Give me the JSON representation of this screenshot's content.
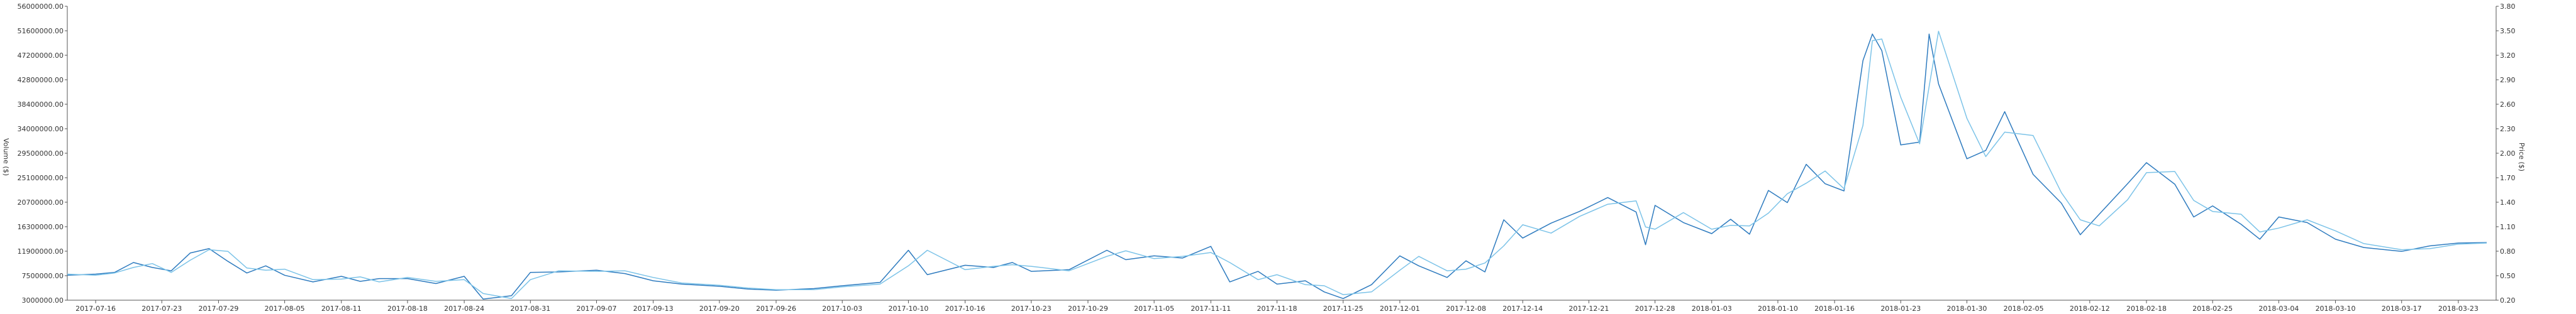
{
  "chart_data": {
    "type": "line",
    "title": "",
    "ylabel_left": "Volume ($)",
    "ylabel_right": "Price ($)",
    "ylim_left": [
      3000000,
      56000000
    ],
    "ylim_right": [
      0.2,
      3.8
    ],
    "y_ticks_left": [
      "3000000.00",
      "7500000.00",
      "11900000.00",
      "16300000.00",
      "20700000.00",
      "25100000.00",
      "29500000.00",
      "34000000.00",
      "38400000.00",
      "42800000.00",
      "47200000.00",
      "51600000.00",
      "56000000.00"
    ],
    "y_ticks_right": [
      "0.20",
      "0.50",
      "0.80",
      "1.10",
      "1.40",
      "1.70",
      "2.00",
      "2.30",
      "2.60",
      "2.90",
      "3.20",
      "3.50",
      "3.80"
    ],
    "x_ticks": [
      "2017-07-16",
      "2017-07-23",
      "2017-07-29",
      "2017-08-05",
      "2017-08-11",
      "2017-08-18",
      "2017-08-24",
      "2017-08-31",
      "2017-09-07",
      "2017-09-13",
      "2017-09-20",
      "2017-09-26",
      "2017-10-03",
      "2017-10-10",
      "2017-10-16",
      "2017-10-23",
      "2017-10-29",
      "2017-11-05",
      "2017-11-11",
      "2017-11-18",
      "2017-11-25",
      "2017-12-01",
      "2017-12-08",
      "2017-12-14",
      "2017-12-21",
      "2017-12-28",
      "2018-01-03",
      "2018-01-10",
      "2018-01-16",
      "2018-01-23",
      "2018-01-30",
      "2018-02-05",
      "2018-02-12",
      "2018-02-18",
      "2018-02-25",
      "2018-03-04",
      "2018-03-10",
      "2018-03-17",
      "2018-03-23"
    ],
    "grid": false,
    "series": [
      {
        "name": "",
        "color": "#2e7bbf",
        "points": [
          [
            "2017-07-13",
            7500000
          ],
          [
            "2017-07-16",
            7700000
          ],
          [
            "2017-07-18",
            8000000
          ],
          [
            "2017-07-20",
            9800000
          ],
          [
            "2017-07-22",
            8900000
          ],
          [
            "2017-07-24",
            8300000
          ],
          [
            "2017-07-26",
            11500000
          ],
          [
            "2017-07-28",
            12300000
          ],
          [
            "2017-07-30",
            10000000
          ],
          [
            "2017-08-01",
            7900000
          ],
          [
            "2017-08-03",
            9200000
          ],
          [
            "2017-08-05",
            7500000
          ],
          [
            "2017-08-08",
            6300000
          ],
          [
            "2017-08-11",
            7300000
          ],
          [
            "2017-08-13",
            6400000
          ],
          [
            "2017-08-15",
            6900000
          ],
          [
            "2017-08-18",
            6900000
          ],
          [
            "2017-08-21",
            6000000
          ],
          [
            "2017-08-24",
            7300000
          ],
          [
            "2017-08-26",
            3200000
          ],
          [
            "2017-08-29",
            3800000
          ],
          [
            "2017-08-31",
            8000000
          ],
          [
            "2017-09-03",
            8100000
          ],
          [
            "2017-09-07",
            8400000
          ],
          [
            "2017-09-10",
            7800000
          ],
          [
            "2017-09-13",
            6500000
          ],
          [
            "2017-09-16",
            5900000
          ],
          [
            "2017-09-20",
            5500000
          ],
          [
            "2017-09-23",
            5000000
          ],
          [
            "2017-09-26",
            4800000
          ],
          [
            "2017-09-30",
            5100000
          ],
          [
            "2017-10-03",
            5600000
          ],
          [
            "2017-10-07",
            6200000
          ],
          [
            "2017-10-10",
            12000000
          ],
          [
            "2017-10-12",
            7600000
          ],
          [
            "2017-10-16",
            9300000
          ],
          [
            "2017-10-19",
            8900000
          ],
          [
            "2017-10-21",
            9800000
          ],
          [
            "2017-10-23",
            8200000
          ],
          [
            "2017-10-27",
            8500000
          ],
          [
            "2017-10-31",
            12000000
          ],
          [
            "2017-11-02",
            10300000
          ],
          [
            "2017-11-05",
            11000000
          ],
          [
            "2017-11-08",
            10600000
          ],
          [
            "2017-11-11",
            12700000
          ],
          [
            "2017-11-13",
            6300000
          ],
          [
            "2017-11-16",
            8200000
          ],
          [
            "2017-11-18",
            5900000
          ],
          [
            "2017-11-21",
            6500000
          ],
          [
            "2017-11-23",
            4500000
          ],
          [
            "2017-11-25",
            3300000
          ],
          [
            "2017-11-28",
            5800000
          ],
          [
            "2017-12-01",
            11000000
          ],
          [
            "2017-12-03",
            9200000
          ],
          [
            "2017-12-06",
            7100000
          ],
          [
            "2017-12-08",
            10100000
          ],
          [
            "2017-12-10",
            8100000
          ],
          [
            "2017-12-12",
            17500000
          ],
          [
            "2017-12-14",
            14200000
          ],
          [
            "2017-12-17",
            16900000
          ],
          [
            "2017-12-20",
            19000000
          ],
          [
            "2017-12-23",
            21500000
          ],
          [
            "2017-12-26",
            18900000
          ],
          [
            "2017-12-27",
            13000000
          ],
          [
            "2017-12-28",
            20100000
          ],
          [
            "2017-12-31",
            17000000
          ],
          [
            "2018-01-03",
            15000000
          ],
          [
            "2018-01-05",
            17600000
          ],
          [
            "2018-01-07",
            14900000
          ],
          [
            "2018-01-09",
            22800000
          ],
          [
            "2018-01-11",
            20600000
          ],
          [
            "2018-01-13",
            27500000
          ],
          [
            "2018-01-15",
            24000000
          ],
          [
            "2018-01-17",
            22700000
          ],
          [
            "2018-01-19",
            46200000
          ],
          [
            "2018-01-20",
            51000000
          ],
          [
            "2018-01-21",
            48000000
          ],
          [
            "2018-01-23",
            31000000
          ],
          [
            "2018-01-25",
            31500000
          ],
          [
            "2018-01-26",
            51000000
          ],
          [
            "2018-01-27",
            42000000
          ],
          [
            "2018-01-30",
            28500000
          ],
          [
            "2018-02-01",
            30000000
          ],
          [
            "2018-02-03",
            37000000
          ],
          [
            "2018-02-06",
            25700000
          ],
          [
            "2018-02-09",
            20500000
          ],
          [
            "2018-02-11",
            14800000
          ],
          [
            "2018-02-13",
            18500000
          ],
          [
            "2018-02-16",
            24000000
          ],
          [
            "2018-02-18",
            27800000
          ],
          [
            "2018-02-21",
            23900000
          ],
          [
            "2018-02-23",
            18000000
          ],
          [
            "2018-02-25",
            20000000
          ],
          [
            "2018-02-28",
            16700000
          ],
          [
            "2018-03-02",
            14000000
          ],
          [
            "2018-03-04",
            18000000
          ],
          [
            "2018-03-07",
            17000000
          ],
          [
            "2018-03-10",
            14000000
          ],
          [
            "2018-03-13",
            12500000
          ],
          [
            "2018-03-17",
            11800000
          ],
          [
            "2018-03-20",
            12800000
          ],
          [
            "2018-03-23",
            13300000
          ],
          [
            "2018-03-26",
            13400000
          ]
        ]
      },
      {
        "name": "",
        "color": "#7cc3e8",
        "points": [
          [
            "2017-07-13",
            7700000
          ],
          [
            "2017-07-16",
            7500000
          ],
          [
            "2017-07-18",
            7900000
          ],
          [
            "2017-07-20",
            8900000
          ],
          [
            "2017-07-22",
            9600000
          ],
          [
            "2017-07-24",
            8000000
          ],
          [
            "2017-07-26",
            10200000
          ],
          [
            "2017-07-28",
            12100000
          ],
          [
            "2017-07-30",
            11800000
          ],
          [
            "2017-08-01",
            8800000
          ],
          [
            "2017-08-03",
            8400000
          ],
          [
            "2017-08-05",
            8600000
          ],
          [
            "2017-08-08",
            6700000
          ],
          [
            "2017-08-11",
            6800000
          ],
          [
            "2017-08-13",
            7200000
          ],
          [
            "2017-08-15",
            6300000
          ],
          [
            "2017-08-18",
            7100000
          ],
          [
            "2017-08-21",
            6400000
          ],
          [
            "2017-08-24",
            6700000
          ],
          [
            "2017-08-26",
            4200000
          ],
          [
            "2017-08-29",
            3300000
          ],
          [
            "2017-08-31",
            6700000
          ],
          [
            "2017-09-03",
            8300000
          ],
          [
            "2017-09-07",
            8200000
          ],
          [
            "2017-09-10",
            8300000
          ],
          [
            "2017-09-13",
            7100000
          ],
          [
            "2017-09-16",
            6100000
          ],
          [
            "2017-09-20",
            5700000
          ],
          [
            "2017-09-23",
            5200000
          ],
          [
            "2017-09-26",
            4900000
          ],
          [
            "2017-09-30",
            4900000
          ],
          [
            "2017-10-03",
            5400000
          ],
          [
            "2017-10-07",
            5900000
          ],
          [
            "2017-10-10",
            9200000
          ],
          [
            "2017-10-12",
            12000000
          ],
          [
            "2017-10-16",
            8500000
          ],
          [
            "2017-10-19",
            9100000
          ],
          [
            "2017-10-21",
            9400000
          ],
          [
            "2017-10-23",
            9100000
          ],
          [
            "2017-10-27",
            8300000
          ],
          [
            "2017-10-31",
            10900000
          ],
          [
            "2017-11-02",
            11900000
          ],
          [
            "2017-11-05",
            10500000
          ],
          [
            "2017-11-08",
            10900000
          ],
          [
            "2017-11-11",
            11600000
          ],
          [
            "2017-11-13",
            9800000
          ],
          [
            "2017-11-16",
            6700000
          ],
          [
            "2017-11-18",
            7600000
          ],
          [
            "2017-11-21",
            5800000
          ],
          [
            "2017-11-23",
            5600000
          ],
          [
            "2017-11-25",
            4000000
          ],
          [
            "2017-11-28",
            4500000
          ],
          [
            "2017-12-01",
            8400000
          ],
          [
            "2017-12-03",
            10900000
          ],
          [
            "2017-12-06",
            8300000
          ],
          [
            "2017-12-08",
            8600000
          ],
          [
            "2017-12-10",
            9700000
          ],
          [
            "2017-12-12",
            12800000
          ],
          [
            "2017-12-14",
            16600000
          ],
          [
            "2017-12-17",
            15100000
          ],
          [
            "2017-12-20",
            18100000
          ],
          [
            "2017-12-23",
            20300000
          ],
          [
            "2017-12-26",
            20900000
          ],
          [
            "2017-12-27",
            16200000
          ],
          [
            "2017-12-28",
            15800000
          ],
          [
            "2017-12-31",
            18800000
          ],
          [
            "2018-01-03",
            15800000
          ],
          [
            "2018-01-05",
            16500000
          ],
          [
            "2018-01-07",
            16400000
          ],
          [
            "2018-01-09",
            18700000
          ],
          [
            "2018-01-11",
            22200000
          ],
          [
            "2018-01-13",
            24100000
          ],
          [
            "2018-01-15",
            26300000
          ],
          [
            "2018-01-17",
            23100000
          ],
          [
            "2018-01-19",
            34500000
          ],
          [
            "2018-01-20",
            49800000
          ],
          [
            "2018-01-21",
            50100000
          ],
          [
            "2018-01-23",
            39600000
          ],
          [
            "2018-01-25",
            31200000
          ],
          [
            "2018-01-26",
            41500000
          ],
          [
            "2018-01-27",
            51500000
          ],
          [
            "2018-01-30",
            35800000
          ],
          [
            "2018-02-01",
            28900000
          ],
          [
            "2018-02-03",
            33300000
          ],
          [
            "2018-02-06",
            32700000
          ],
          [
            "2018-02-09",
            22400000
          ],
          [
            "2018-02-11",
            17500000
          ],
          [
            "2018-02-13",
            16400000
          ],
          [
            "2018-02-16",
            21100000
          ],
          [
            "2018-02-18",
            26000000
          ],
          [
            "2018-02-21",
            26200000
          ],
          [
            "2018-02-23",
            21000000
          ],
          [
            "2018-02-25",
            19000000
          ],
          [
            "2018-02-28",
            18500000
          ],
          [
            "2018-03-02",
            15300000
          ],
          [
            "2018-03-04",
            16000000
          ],
          [
            "2018-03-07",
            17500000
          ],
          [
            "2018-03-10",
            15500000
          ],
          [
            "2018-03-13",
            13200000
          ],
          [
            "2018-03-17",
            12100000
          ],
          [
            "2018-03-20",
            12300000
          ],
          [
            "2018-03-23",
            13100000
          ],
          [
            "2018-03-26",
            13300000
          ]
        ]
      }
    ]
  }
}
